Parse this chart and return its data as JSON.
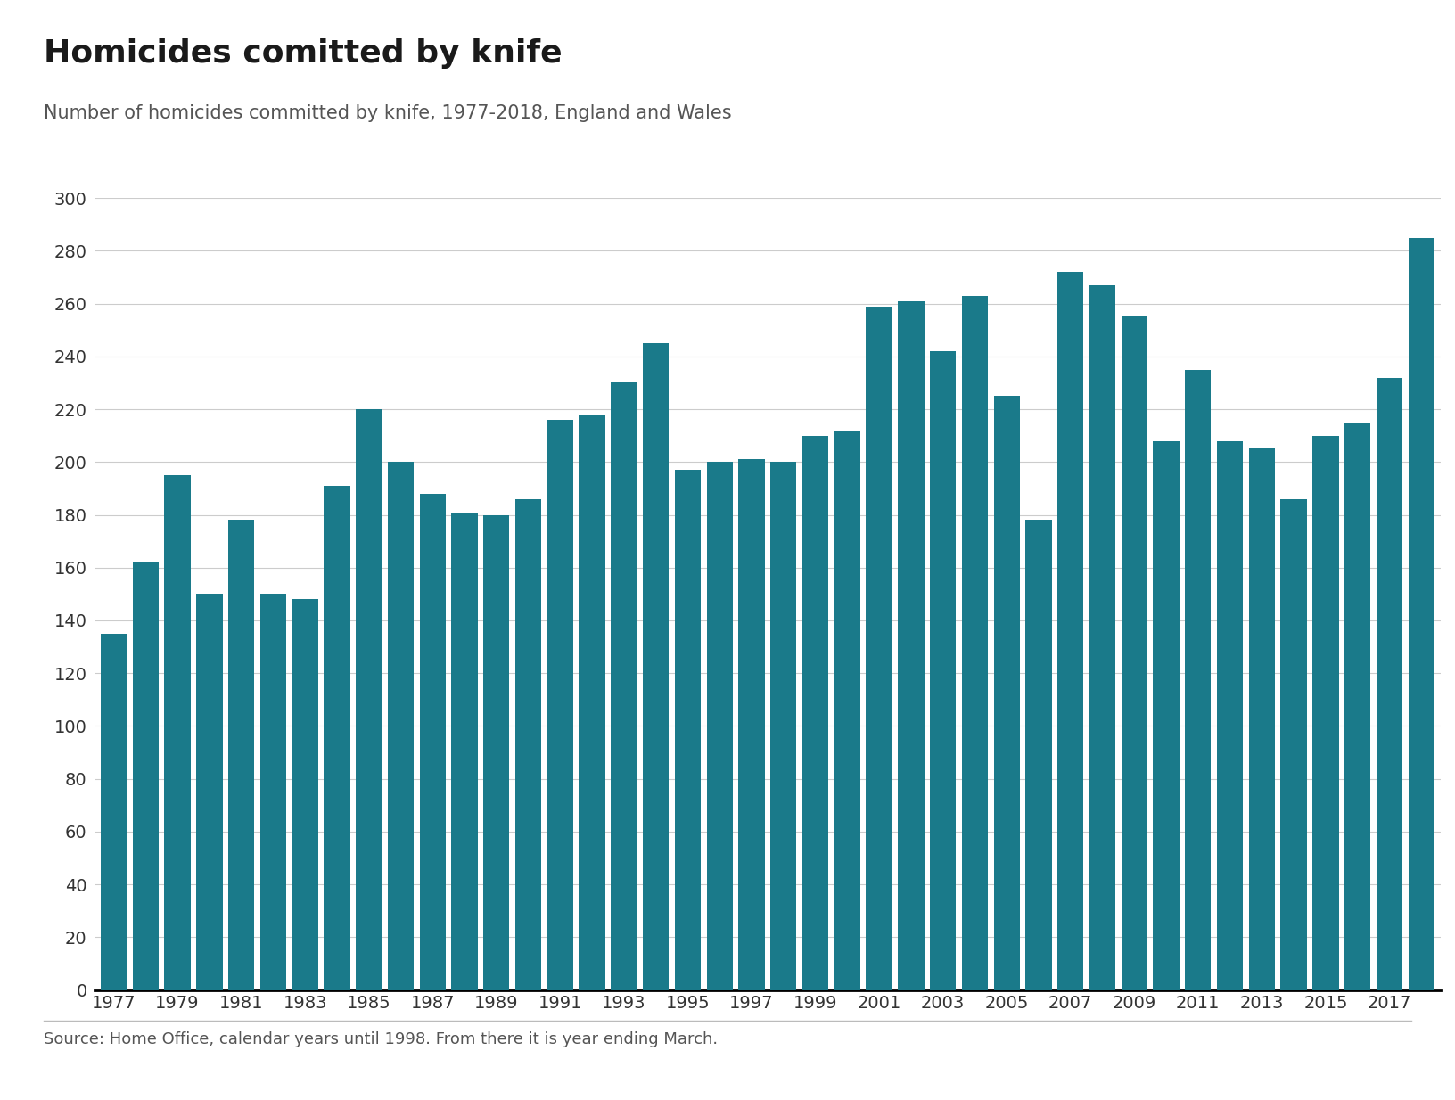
{
  "title": "Homicides comitted by knife",
  "subtitle": "Number of homicides committed by knife, 1977-2018, England and Wales",
  "source": "Source: Home Office, calendar years until 1998. From there it is year ending March.",
  "bar_color": "#1a7a8a",
  "background_color": "#ffffff",
  "grid_color": "#cccccc",
  "years": [
    1977,
    1978,
    1979,
    1980,
    1981,
    1982,
    1983,
    1984,
    1985,
    1986,
    1987,
    1988,
    1989,
    1990,
    1991,
    1992,
    1993,
    1994,
    1995,
    1996,
    1997,
    1998,
    1999,
    2000,
    2001,
    2002,
    2003,
    2004,
    2005,
    2006,
    2007,
    2008,
    2009,
    2010,
    2011,
    2012,
    2013,
    2014,
    2015,
    2016,
    2017,
    2018
  ],
  "values": [
    135,
    162,
    195,
    150,
    178,
    150,
    148,
    191,
    220,
    200,
    188,
    181,
    180,
    186,
    216,
    218,
    230,
    245,
    197,
    200,
    201,
    200,
    210,
    212,
    259,
    261,
    242,
    263,
    225,
    178,
    272,
    267,
    255,
    208,
    235,
    208,
    205,
    186,
    210,
    215,
    232,
    285
  ],
  "ylim": [
    0,
    300
  ],
  "yticks": [
    0,
    20,
    40,
    60,
    80,
    100,
    120,
    140,
    160,
    180,
    200,
    220,
    240,
    260,
    280,
    300
  ],
  "xtick_years": [
    1977,
    1979,
    1981,
    1983,
    1985,
    1987,
    1989,
    1991,
    1993,
    1995,
    1997,
    1999,
    2001,
    2003,
    2005,
    2007,
    2009,
    2011,
    2013,
    2015,
    2017
  ],
  "title_fontsize": 26,
  "subtitle_fontsize": 15,
  "tick_fontsize": 14,
  "source_fontsize": 13
}
